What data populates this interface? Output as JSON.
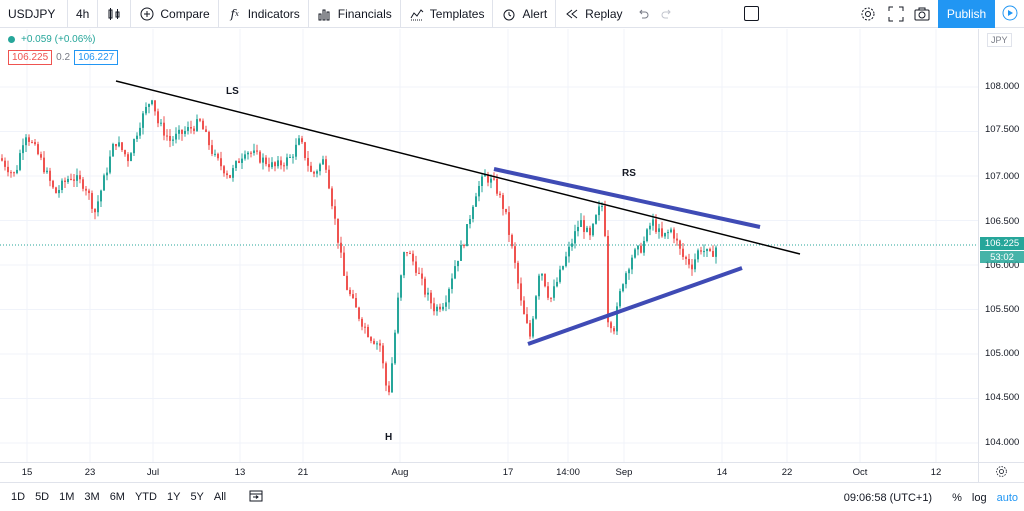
{
  "toolbar": {
    "symbol": "USDJPY",
    "interval": "4h",
    "compare": "Compare",
    "indicators": "Indicators",
    "financials": "Financials",
    "templates": "Templates",
    "alert": "Alert",
    "replay": "Replay",
    "publish": "Publish"
  },
  "legend": {
    "change": "+0.059 (+0.06%)",
    "bid": "106.225",
    "spread": "0.2",
    "ask": "106.227"
  },
  "price_scale": {
    "currency": "JPY",
    "ticks": [
      "108.000",
      "107.500",
      "107.000",
      "106.500",
      "106.000",
      "105.500",
      "105.000",
      "104.500",
      "104.000"
    ],
    "last_price": "106.225",
    "countdown": "53:02"
  },
  "time_scale": {
    "ticks": [
      "15",
      "23",
      "Jul",
      "13",
      "21",
      "Aug",
      "17",
      "14:00",
      "Sep",
      "14",
      "22",
      "Oct",
      "12"
    ]
  },
  "annotations": {
    "left_shoulder": "LS",
    "head": "H",
    "right_shoulder": "RS"
  },
  "bottom": {
    "ranges": [
      "1D",
      "5D",
      "1M",
      "3M",
      "6M",
      "YTD",
      "1Y",
      "5Y",
      "All"
    ],
    "clock": "09:06:58 (UTC+1)",
    "percent": "%",
    "log": "log",
    "auto": "auto"
  },
  "colors": {
    "up": "#26a69a",
    "down": "#ef5350",
    "trendline": "#000000",
    "channel": "#3f4bb5",
    "accent": "#2196f3"
  }
}
